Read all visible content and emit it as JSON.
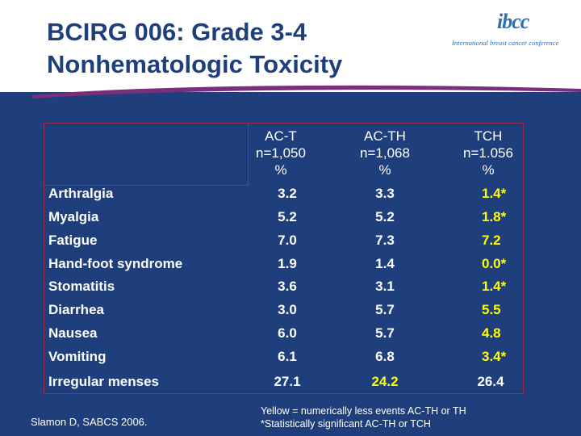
{
  "slide": {
    "title_line1": "BCIRG 006: Grade 3-4",
    "title_line2": "Nonhematologic Toxicity",
    "logo_mark": "ibcc",
    "logo_subtitle": "International breast cancer conference"
  },
  "columns": [
    {
      "line1": "AC-T",
      "line2": "n=1,050",
      "line3": "%"
    },
    {
      "line1": "AC-TH",
      "line2": "n=1,068",
      "line3": "%"
    },
    {
      "line1": "TCH",
      "line2": "n=1.056",
      "line3": "%"
    }
  ],
  "rows": [
    {
      "label": "Arthralgia",
      "act": "3.2",
      "acth": "3.3",
      "tch": "1.4*"
    },
    {
      "label": "Myalgia",
      "act": "5.2",
      "acth": "5.2",
      "tch": "1.8*"
    },
    {
      "label": "Fatigue",
      "act": "7.0",
      "acth": "7.3",
      "tch": "7.2"
    },
    {
      "label": "Hand-foot syndrome",
      "act": "1.9",
      "acth": "1.4",
      "tch": "0.0*"
    },
    {
      "label": "Stomatitis",
      "act": "3.6",
      "acth": "3.1",
      "tch": "1.4*"
    },
    {
      "label": "Diarrhea",
      "act": "3.0",
      "acth": "5.7",
      "tch": "5.5"
    },
    {
      "label": "Nausea",
      "act": "6.0",
      "acth": "5.7",
      "tch": "4.8"
    },
    {
      "label": "Vomiting",
      "act": "6.1",
      "acth": "6.8",
      "tch": "3.4*"
    },
    {
      "label": "Irregular menses",
      "act": "27.1",
      "acth": "24.2",
      "tch": "26.4"
    }
  ],
  "cell_colors": {
    "white": "#FFFFFF",
    "yellow": "#FFFF00"
  },
  "footnote": {
    "line1": "Yellow = numerically less events AC-TH or TH",
    "line2": "*Statistically significant AC-TH or TCH"
  },
  "citation": "Slamon D, SABCS 2006."
}
